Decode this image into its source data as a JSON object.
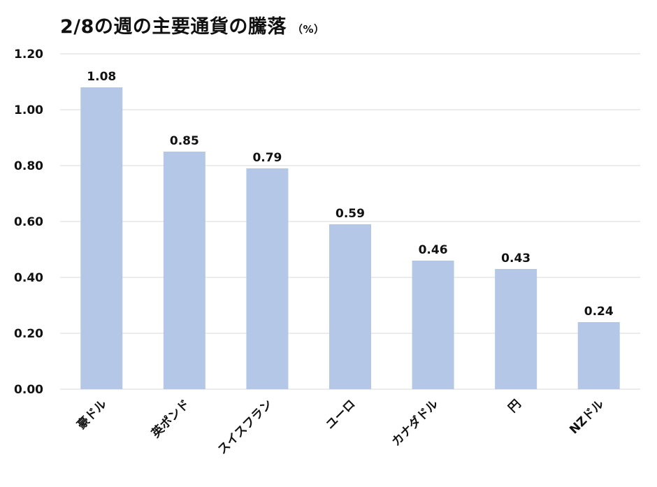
{
  "chart_data": {
    "type": "bar",
    "title": "2/8の週の主要通貨の騰落",
    "unit": "（%）",
    "categories": [
      "豪ドル",
      "英ポンド",
      "スイスフラン",
      "ユーロ",
      "カナダドル",
      "円",
      "NZドル"
    ],
    "values": [
      1.08,
      0.85,
      0.79,
      0.59,
      0.46,
      0.43,
      0.24
    ],
    "value_labels": [
      "1.08",
      "0.85",
      "0.79",
      "0.59",
      "0.46",
      "0.43",
      "0.24"
    ],
    "yticks": [
      "0.00",
      "0.20",
      "0.40",
      "0.60",
      "0.80",
      "1.00",
      "1.20"
    ],
    "ylim": [
      0,
      1.2
    ],
    "grid": true,
    "bar_color": "#b4c7e7",
    "grid_color": "#d9d9d9"
  }
}
